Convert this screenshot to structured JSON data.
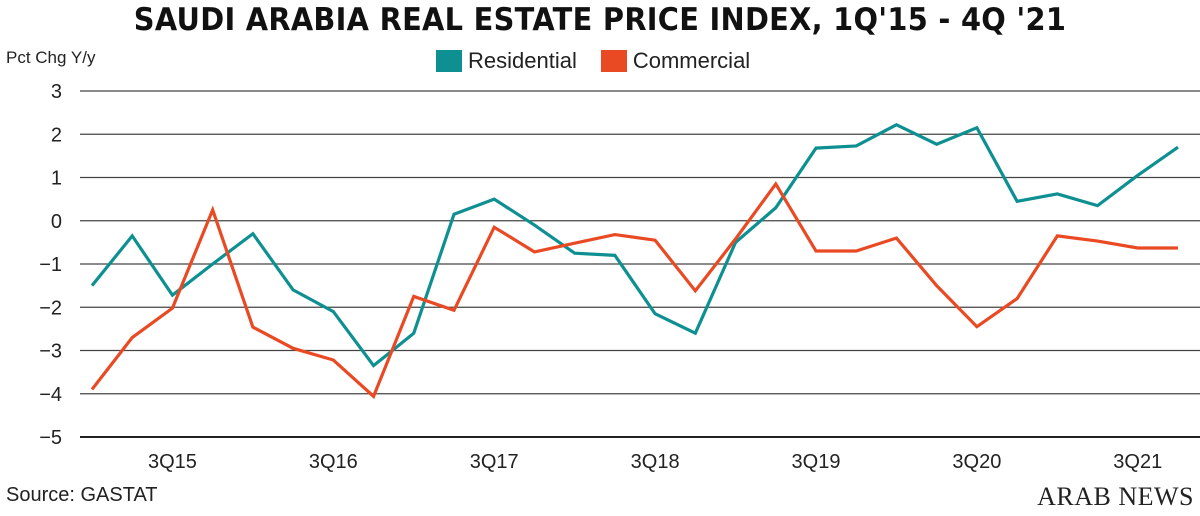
{
  "chart_data": {
    "type": "line",
    "title": "SAUDI ARABIA REAL ESTATE PRICE INDEX, 1Q'15 - 4Q '21",
    "ylabel": "Pct Chg Y/y",
    "xlabel": "",
    "ylim": [
      -5,
      3
    ],
    "yticks": [
      3,
      2,
      1,
      0,
      -1,
      -2,
      -3,
      -4,
      -5
    ],
    "x": [
      "1Q15",
      "2Q15",
      "3Q15",
      "4Q15",
      "1Q16",
      "2Q16",
      "3Q16",
      "4Q16",
      "1Q17",
      "2Q17",
      "3Q17",
      "4Q17",
      "1Q18",
      "2Q18",
      "3Q18",
      "4Q18",
      "1Q19",
      "2Q19",
      "3Q19",
      "4Q19",
      "1Q20",
      "2Q20",
      "3Q20",
      "4Q20",
      "1Q21",
      "2Q21",
      "3Q21",
      "4Q21"
    ],
    "xtick_labels": [
      "3Q15",
      "3Q16",
      "3Q17",
      "3Q18",
      "3Q19",
      "3Q20",
      "3Q21"
    ],
    "grid": true,
    "legend_placement": "top-center",
    "series": [
      {
        "name": "Residential",
        "color": "#0e9093",
        "values": [
          -1.5,
          -0.35,
          -1.72,
          -1.0,
          -0.3,
          -1.6,
          -2.1,
          -3.35,
          -2.6,
          0.15,
          0.5,
          -0.1,
          -0.75,
          -0.8,
          -2.15,
          -2.6,
          -0.5,
          0.3,
          1.68,
          1.73,
          2.22,
          1.77,
          2.15,
          0.45,
          0.62,
          0.35,
          1.05,
          1.7
        ]
      },
      {
        "name": "Commercial",
        "color": "#ea4a23",
        "values": [
          -3.9,
          -2.7,
          -2.02,
          0.25,
          -2.46,
          -2.95,
          -3.22,
          -4.06,
          -1.75,
          -2.07,
          -0.15,
          -0.72,
          -0.52,
          -0.32,
          -0.45,
          -1.62,
          -0.42,
          0.85,
          -0.7,
          -0.7,
          -0.4,
          -1.5,
          -2.45,
          -1.8,
          -0.35,
          -0.47,
          -0.63,
          -0.63
        ]
      }
    ]
  },
  "footer": {
    "source": "Source: GASTAT",
    "logo": "ARAB NEWS"
  }
}
